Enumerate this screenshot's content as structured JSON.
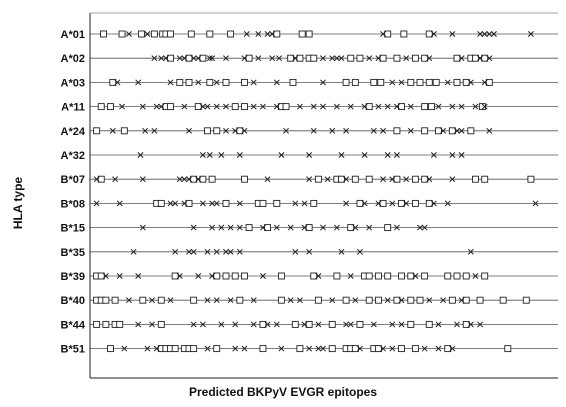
{
  "chart_data": {
    "type": "scatter",
    "xlabel": "Predicted BKPyV EVGR epitopes",
    "ylabel": "HLA type",
    "x_range": [
      0,
      100
    ],
    "grid": "horizontal",
    "legend": "none",
    "categories": [
      "A*01",
      "A*02",
      "A*03",
      "A*11",
      "A*24",
      "A*32",
      "B*07",
      "B*08",
      "B*15",
      "B*35",
      "B*39",
      "B*40",
      "B*44",
      "B*51"
    ],
    "series": [
      {
        "category": "A*01",
        "squares": [
          2.5,
          6.5,
          10.7,
          13.5,
          15.3,
          16,
          17,
          21.5,
          25.5,
          30,
          40,
          45.5,
          47,
          64,
          67.5,
          73
        ],
        "crosses": [
          8,
          12,
          33.5,
          36,
          38,
          39,
          63,
          74,
          78,
          84,
          85,
          86,
          87,
          95
        ]
      },
      {
        "category": "A*02",
        "squares": [
          17,
          21,
          24,
          34,
          43,
          45,
          47,
          48,
          56,
          58,
          63,
          66,
          70,
          72,
          79,
          82,
          83,
          85
        ],
        "crosses": [
          13.5,
          15,
          16,
          19,
          20,
          22,
          23,
          25.5,
          26,
          29,
          33,
          36,
          39,
          40.5,
          44,
          50,
          52,
          53,
          54,
          60,
          62,
          68,
          73,
          80,
          84,
          86
        ]
      },
      {
        "category": "A*03",
        "squares": [
          4.5,
          19,
          21,
          25.5,
          29,
          33,
          43.5,
          55,
          57,
          61,
          62.5,
          69,
          71,
          73,
          74.5,
          79,
          81,
          86
        ],
        "crosses": [
          5.5,
          10,
          17,
          23,
          27,
          35,
          40,
          50,
          65,
          67,
          77,
          82,
          85
        ]
      },
      {
        "category": "A*11",
        "squares": [
          2,
          4,
          16,
          17,
          23,
          31,
          33,
          41,
          42,
          60,
          67,
          72,
          73.5,
          84.5
        ],
        "crosses": [
          6.5,
          11,
          14,
          15,
          20,
          24,
          25,
          27,
          29,
          35,
          37,
          40,
          45,
          48,
          50,
          53,
          56,
          59,
          62,
          64,
          66,
          69,
          75,
          78,
          80,
          83,
          85
        ]
      },
      {
        "category": "A*24",
        "squares": [
          1,
          7,
          25,
          27,
          32,
          66,
          72,
          75,
          78,
          82
        ],
        "crosses": [
          4.5,
          11.5,
          13.5,
          21,
          29,
          31,
          33,
          42,
          48,
          52,
          55,
          61,
          63,
          69,
          76,
          79,
          80,
          86
        ]
      },
      {
        "category": "A*32",
        "squares": [],
        "crosses": [
          10.5,
          24,
          25.5,
          28,
          32,
          41,
          47,
          54,
          59,
          64,
          66,
          74,
          78,
          80
        ]
      },
      {
        "category": "B*07",
        "squares": [
          2,
          22,
          24,
          26,
          33,
          49,
          53,
          54,
          57,
          60,
          66,
          70,
          72,
          83,
          85,
          95
        ],
        "crosses": [
          1,
          5,
          11,
          19,
          20,
          21,
          23,
          38,
          47,
          51,
          55,
          63,
          65,
          68,
          73,
          78
        ]
      },
      {
        "category": "B*08",
        "squares": [
          14,
          15,
          21,
          29,
          36,
          37,
          40,
          48,
          58,
          63,
          67,
          70,
          73
        ],
        "crosses": [
          1,
          6,
          17,
          18,
          20,
          24,
          26,
          27,
          32,
          44,
          46,
          55,
          59,
          62,
          65,
          68,
          74,
          77,
          96
        ]
      },
      {
        "category": "B*15",
        "squares": [
          34,
          38,
          47,
          56,
          64
        ],
        "crosses": [
          11,
          22,
          26,
          28,
          30,
          32,
          37,
          40,
          43,
          46,
          50,
          53,
          57,
          60,
          66,
          71,
          72
        ]
      },
      {
        "category": "B*35",
        "squares": [],
        "crosses": [
          9,
          18,
          21,
          22,
          25,
          27,
          29,
          30,
          32,
          44,
          47,
          54,
          58,
          82
        ]
      },
      {
        "category": "B*39",
        "squares": [
          1,
          2,
          18,
          27,
          29,
          31,
          33,
          41,
          48,
          53,
          59,
          60,
          62,
          64,
          67,
          69,
          72,
          77,
          79,
          81,
          85
        ],
        "crosses": [
          3,
          6,
          10,
          19,
          23,
          26,
          37,
          49,
          56,
          70,
          83
        ]
      },
      {
        "category": "B*40",
        "squares": [
          1,
          2,
          3,
          5,
          11,
          15,
          22,
          32,
          41,
          49,
          55,
          60,
          62,
          66,
          69,
          71,
          78,
          81,
          84,
          89,
          94
        ],
        "crosses": [
          8,
          13,
          17,
          25,
          27,
          30,
          35,
          43,
          45,
          52,
          57,
          64,
          67,
          73,
          76,
          80
        ]
      },
      {
        "category": "B*44",
        "squares": [
          1,
          3,
          5,
          6,
          15,
          37,
          44,
          47,
          52,
          58,
          69,
          73,
          81
        ],
        "crosses": [
          10,
          13,
          22,
          24,
          28,
          31,
          35,
          38,
          40,
          46,
          49,
          55,
          56,
          61,
          65,
          67,
          75,
          79,
          82,
          84
        ]
      },
      {
        "category": "B*51",
        "squares": [
          4,
          15,
          16,
          17,
          18,
          20,
          21,
          22,
          27,
          37,
          45,
          52,
          55,
          56,
          57,
          61,
          62,
          67,
          70,
          77,
          90
        ],
        "crosses": [
          7,
          12,
          14,
          25,
          31,
          33,
          41,
          47,
          49,
          50,
          58,
          63,
          65,
          72,
          75,
          78
        ]
      }
    ]
  }
}
